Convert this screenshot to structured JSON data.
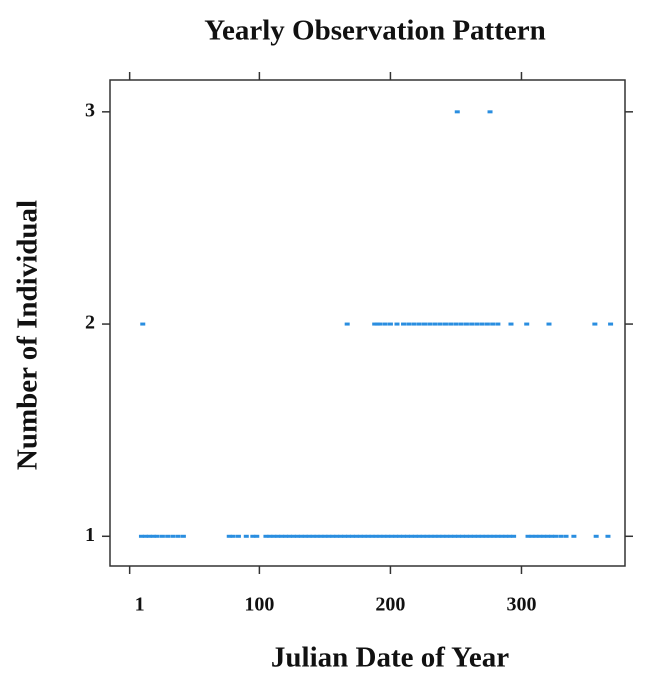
{
  "chart_data": {
    "type": "scatter",
    "title": "Yearly Observation Pattern",
    "x_label": "Julian Date of Year",
    "y_label": "Number of Individual",
    "xlim": [
      -14,
      379
    ],
    "ylim": [
      0.86,
      3.15
    ],
    "xticks": [
      1,
      100,
      200,
      300
    ],
    "yticks": [
      1,
      2,
      3
    ],
    "series": [
      {
        "color": "#2a8ee0",
        "x": [
          10,
          13,
          16,
          19,
          22,
          26,
          30,
          34,
          38,
          42,
          77,
          80,
          84,
          90,
          95,
          98,
          105,
          108,
          111,
          114,
          117,
          120,
          123,
          126,
          129,
          132,
          135,
          138,
          141,
          144,
          147,
          150,
          153,
          156,
          159,
          162,
          165,
          168,
          171,
          174,
          177,
          180,
          183,
          186,
          189,
          192,
          195,
          198,
          201,
          204,
          207,
          210,
          213,
          216,
          219,
          222,
          225,
          228,
          231,
          234,
          237,
          240,
          243,
          246,
          249,
          252,
          255,
          258,
          261,
          264,
          267,
          270,
          273,
          276,
          279,
          282,
          285,
          288,
          291,
          294,
          305,
          308,
          311,
          314,
          317,
          320,
          323,
          326,
          330,
          334,
          340,
          357,
          366
        ],
        "values": [
          1,
          1,
          1,
          1,
          1,
          1,
          1,
          1,
          1,
          1,
          1,
          1,
          1,
          1,
          1,
          1,
          1,
          1,
          1,
          1,
          1,
          1,
          1,
          1,
          1,
          1,
          1,
          1,
          1,
          1,
          1,
          1,
          1,
          1,
          1,
          1,
          1,
          1,
          1,
          1,
          1,
          1,
          1,
          1,
          1,
          1,
          1,
          1,
          1,
          1,
          1,
          1,
          1,
          1,
          1,
          1,
          1,
          1,
          1,
          1,
          1,
          1,
          1,
          1,
          1,
          1,
          1,
          1,
          1,
          1,
          1,
          1,
          1,
          1,
          1,
          1,
          1,
          1,
          1,
          1,
          1,
          1,
          1,
          1,
          1,
          1,
          1,
          1,
          1,
          1,
          1,
          1,
          1
        ]
      },
      {
        "color": "#2a8ee0",
        "x": [
          11,
          167,
          188,
          190,
          192,
          196,
          200,
          205,
          210,
          214,
          218,
          222,
          226,
          230,
          234,
          238,
          242,
          246,
          250,
          254,
          258,
          262,
          266,
          270,
          274,
          278,
          282,
          292,
          304,
          321,
          356,
          368
        ],
        "values": [
          2,
          2,
          2,
          2,
          2,
          2,
          2,
          2,
          2,
          2,
          2,
          2,
          2,
          2,
          2,
          2,
          2,
          2,
          2,
          2,
          2,
          2,
          2,
          2,
          2,
          2,
          2,
          2,
          2,
          2,
          2,
          2
        ]
      },
      {
        "color": "#2a8ee0",
        "x": [
          251,
          276
        ],
        "values": [
          3,
          3
        ]
      }
    ]
  }
}
